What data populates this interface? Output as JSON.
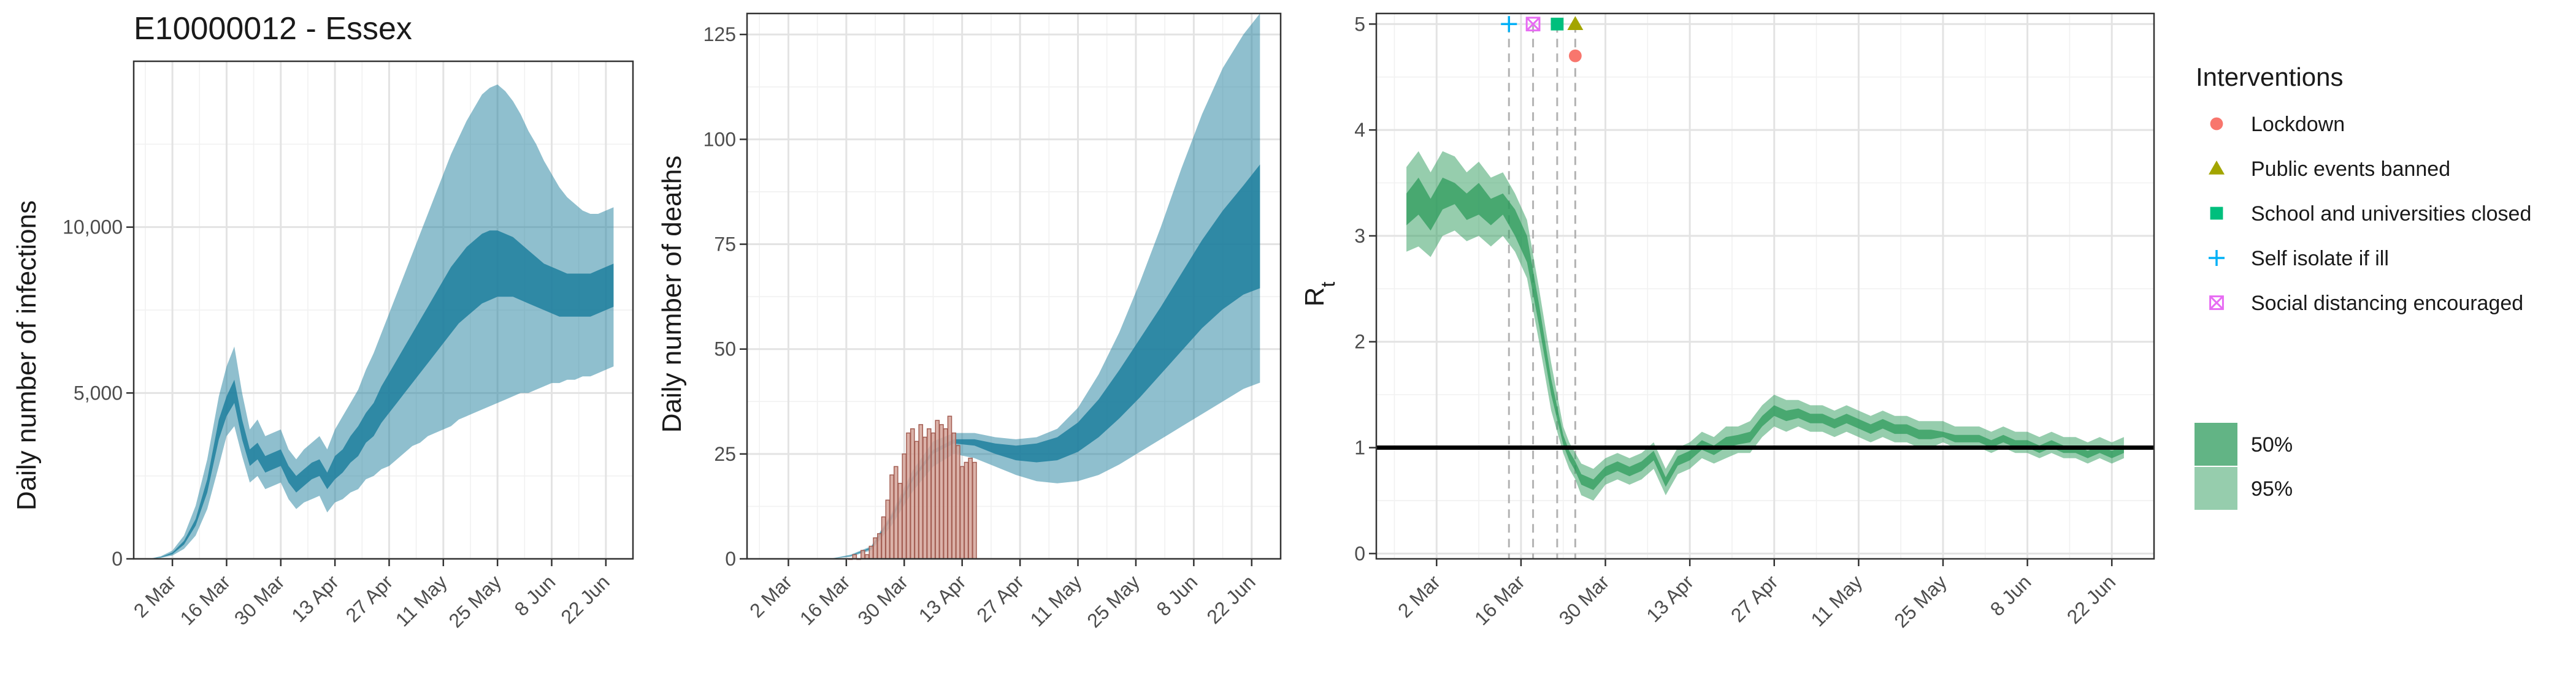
{
  "colors": {
    "infection_band": "#1f7f9d",
    "rt_band": "#2e9b5c",
    "deaths_bar_fill": "#d5a59a",
    "deaths_bar_stroke": "#a35d52",
    "lockdown": "#f8766d",
    "public_events": "#a3a500",
    "schools": "#00bf7d",
    "self_isolate": "#00b0f6",
    "social_distancing": "#e76bf3"
  },
  "chart_data": [
    {
      "type": "area",
      "title": "E10000012 - Essex",
      "xlabel": "",
      "ylabel": "Daily number of infections",
      "x_ticks": [
        "2 Mar",
        "16 Mar",
        "30 Mar",
        "13 Apr",
        "27 Apr",
        "11 May",
        "25 May",
        "8 Jun",
        "22 Jun"
      ],
      "y_ticks": [
        "0",
        "5,000",
        "10,000"
      ],
      "x_range_days": [
        -10,
        119
      ],
      "ylim": [
        0,
        15000
      ],
      "x": [
        -6,
        -3,
        0,
        3,
        6,
        9,
        12,
        14,
        16,
        18,
        20,
        22,
        24,
        26,
        28,
        30,
        32,
        34,
        36,
        38,
        40,
        42,
        44,
        46,
        48,
        50,
        52,
        54,
        56,
        58,
        60,
        62,
        64,
        66,
        68,
        70,
        72,
        74,
        76,
        78,
        80,
        82,
        84,
        86,
        88,
        90,
        92,
        94,
        96,
        98,
        100,
        102,
        104,
        106,
        108,
        110,
        112,
        114
      ],
      "series": [
        {
          "band": "95%",
          "lower": [
            0,
            30,
            100,
            300,
            700,
            1500,
            2800,
            3700,
            4000,
            3100,
            2300,
            2500,
            2100,
            2200,
            2300,
            1800,
            1500,
            1700,
            1800,
            1900,
            1400,
            1700,
            1800,
            2000,
            2100,
            2400,
            2500,
            2700,
            2800,
            3000,
            3200,
            3400,
            3500,
            3700,
            3800,
            3900,
            4000,
            4200,
            4300,
            4400,
            4500,
            4600,
            4700,
            4800,
            4900,
            5000,
            5000,
            5100,
            5200,
            5300,
            5300,
            5400,
            5400,
            5500,
            5500,
            5600,
            5700,
            5800
          ],
          "upper": [
            0,
            80,
            250,
            700,
            1600,
            3000,
            4900,
            5800,
            6400,
            5000,
            3900,
            4200,
            3700,
            3800,
            3900,
            3300,
            3000,
            3300,
            3500,
            3700,
            3300,
            3900,
            4300,
            4700,
            5100,
            5700,
            6200,
            6800,
            7400,
            8000,
            8600,
            9200,
            9800,
            10400,
            11000,
            11600,
            12200,
            12700,
            13200,
            13600,
            14000,
            14200,
            14300,
            14100,
            13800,
            13400,
            12900,
            12500,
            12000,
            11600,
            11200,
            10900,
            10700,
            10500,
            10400,
            10400,
            10500,
            10600
          ]
        },
        {
          "band": "50%",
          "lower": [
            0,
            40,
            140,
            430,
            1000,
            2000,
            3600,
            4300,
            4700,
            3600,
            2800,
            3000,
            2600,
            2700,
            2800,
            2300,
            2000,
            2200,
            2400,
            2500,
            2100,
            2400,
            2600,
            2900,
            3100,
            3500,
            3700,
            4100,
            4400,
            4700,
            5000,
            5300,
            5600,
            5900,
            6200,
            6500,
            6800,
            7100,
            7300,
            7500,
            7700,
            7800,
            7900,
            7900,
            7900,
            7800,
            7700,
            7600,
            7500,
            7400,
            7300,
            7300,
            7300,
            7300,
            7300,
            7400,
            7500,
            7600
          ],
          "upper": [
            0,
            55,
            190,
            540,
            1200,
            2400,
            4200,
            4900,
            5400,
            4200,
            3300,
            3500,
            3100,
            3200,
            3300,
            2800,
            2500,
            2700,
            2900,
            3000,
            2600,
            3100,
            3300,
            3700,
            4000,
            4400,
            4700,
            5200,
            5600,
            6000,
            6400,
            6800,
            7200,
            7600,
            8000,
            8400,
            8800,
            9100,
            9400,
            9600,
            9800,
            9900,
            9900,
            9800,
            9700,
            9500,
            9300,
            9100,
            8900,
            8800,
            8700,
            8600,
            8600,
            8600,
            8600,
            8700,
            8800,
            8900
          ]
        }
      ]
    },
    {
      "type": "bar",
      "title": "",
      "xlabel": "",
      "ylabel": "Daily number of deaths",
      "x_ticks": [
        "2 Mar",
        "16 Mar",
        "30 Mar",
        "13 Apr",
        "27 Apr",
        "11 May",
        "25 May",
        "8 Jun",
        "22 Jun"
      ],
      "y_ticks": [
        "0",
        "25",
        "50",
        "75",
        "100",
        "125"
      ],
      "x_range_days": [
        -10,
        119
      ],
      "ylim": [
        0,
        130
      ],
      "bars": {
        "start_day": 15,
        "values": [
          0,
          1,
          0,
          2,
          1,
          3,
          5,
          6,
          10,
          14,
          20,
          22,
          18,
          25,
          30,
          31,
          28,
          32,
          29,
          31,
          30,
          33,
          32,
          31,
          34,
          30,
          27,
          22,
          23,
          24,
          23
        ]
      },
      "bands_x": [
        10,
        15,
        20,
        25,
        30,
        35,
        40,
        45,
        50,
        55,
        60,
        65,
        70,
        75,
        80,
        85,
        90,
        95,
        100,
        105,
        110,
        114
      ],
      "series": [
        {
          "band": "95%",
          "lower": [
            0,
            0.5,
            2,
            8,
            16,
            22,
            25,
            24,
            22,
            20,
            18.5,
            18,
            18.5,
            20,
            22.5,
            25.5,
            28.5,
            31.5,
            34.5,
            37.5,
            40.5,
            42
          ],
          "upper": [
            0,
            1,
            3,
            11,
            21,
            28,
            30,
            30,
            29,
            28.5,
            29,
            31,
            36,
            44,
            54,
            66,
            79,
            93,
            106,
            117,
            125,
            130
          ]
        },
        {
          "band": "50%",
          "lower": [
            0,
            0.7,
            2.4,
            9.5,
            18.5,
            25,
            27.5,
            27,
            25,
            23.5,
            23,
            23.5,
            25.5,
            29,
            33.5,
            38.5,
            44,
            49.5,
            55,
            59.5,
            63,
            64.5
          ],
          "upper": [
            0,
            0.8,
            2.7,
            10.5,
            19.5,
            26,
            28.5,
            28.5,
            27.5,
            27,
            27.5,
            29,
            32.5,
            38,
            45,
            52.5,
            60,
            68,
            76,
            83,
            89,
            94
          ]
        }
      ]
    },
    {
      "type": "line",
      "title": "",
      "xlabel": "",
      "ylabel": "Rt",
      "x_ticks": [
        "2 Mar",
        "16 Mar",
        "30 Mar",
        "13 Apr",
        "27 Apr",
        "11 May",
        "25 May",
        "8 Jun",
        "22 Jun"
      ],
      "y_ticks": [
        "0",
        "1",
        "2",
        "3",
        "4",
        "5"
      ],
      "x_range_days": [
        -10,
        119
      ],
      "ylim": [
        -0.05,
        5.1
      ],
      "reference_line": 1,
      "x": [
        -5,
        -3,
        -1,
        1,
        3,
        5,
        7,
        9,
        11,
        13,
        15,
        17,
        19,
        21,
        22,
        23,
        24,
        26,
        28,
        30,
        32,
        34,
        36,
        38,
        40,
        42,
        44,
        46,
        48,
        50,
        52,
        54,
        56,
        58,
        60,
        62,
        64,
        66,
        68,
        70,
        72,
        74,
        76,
        78,
        80,
        82,
        84,
        86,
        88,
        90,
        92,
        94,
        96,
        98,
        100,
        102,
        104,
        106,
        108,
        110,
        112,
        114
      ],
      "series": [
        {
          "band": "95%",
          "lower": [
            2.85,
            2.9,
            2.8,
            3.0,
            3.05,
            2.95,
            3.0,
            2.9,
            3.0,
            2.85,
            2.6,
            2.0,
            1.35,
            0.95,
            0.8,
            0.7,
            0.55,
            0.5,
            0.65,
            0.7,
            0.65,
            0.7,
            0.8,
            0.55,
            0.75,
            0.8,
            0.9,
            0.85,
            0.9,
            0.95,
            0.95,
            1.1,
            1.2,
            1.15,
            1.2,
            1.15,
            1.15,
            1.1,
            1.15,
            1.1,
            1.05,
            1.1,
            1.05,
            1.05,
            1.0,
            1.0,
            1.05,
            1.0,
            1.0,
            1.0,
            0.95,
            1.0,
            0.95,
            0.95,
            0.9,
            0.95,
            0.9,
            0.9,
            0.85,
            0.9,
            0.85,
            0.9
          ],
          "upper": [
            3.65,
            3.8,
            3.6,
            3.8,
            3.75,
            3.6,
            3.7,
            3.55,
            3.6,
            3.4,
            3.15,
            2.5,
            1.8,
            1.2,
            1.05,
            0.95,
            0.85,
            0.8,
            0.9,
            0.95,
            0.9,
            0.95,
            1.05,
            0.8,
            1.0,
            1.05,
            1.15,
            1.1,
            1.2,
            1.2,
            1.25,
            1.4,
            1.5,
            1.45,
            1.45,
            1.4,
            1.4,
            1.35,
            1.4,
            1.35,
            1.3,
            1.35,
            1.3,
            1.3,
            1.25,
            1.25,
            1.25,
            1.2,
            1.2,
            1.2,
            1.15,
            1.2,
            1.15,
            1.15,
            1.1,
            1.15,
            1.1,
            1.1,
            1.05,
            1.1,
            1.05,
            1.1
          ]
        },
        {
          "band": "50%",
          "lower": [
            3.1,
            3.2,
            3.05,
            3.25,
            3.3,
            3.15,
            3.2,
            3.1,
            3.2,
            3.0,
            2.75,
            2.15,
            1.5,
            1.03,
            0.88,
            0.78,
            0.65,
            0.6,
            0.73,
            0.78,
            0.73,
            0.78,
            0.88,
            0.63,
            0.83,
            0.88,
            0.98,
            0.93,
            1.0,
            1.03,
            1.05,
            1.2,
            1.3,
            1.25,
            1.28,
            1.23,
            1.23,
            1.18,
            1.23,
            1.18,
            1.13,
            1.18,
            1.13,
            1.13,
            1.08,
            1.08,
            1.1,
            1.05,
            1.05,
            1.05,
            1.0,
            1.05,
            1.0,
            1.0,
            0.95,
            1.0,
            0.95,
            0.95,
            0.9,
            0.95,
            0.9,
            0.95
          ],
          "upper": [
            3.4,
            3.55,
            3.35,
            3.55,
            3.5,
            3.4,
            3.5,
            3.35,
            3.4,
            3.25,
            3.0,
            2.35,
            1.65,
            1.12,
            0.97,
            0.87,
            0.75,
            0.7,
            0.82,
            0.87,
            0.82,
            0.87,
            0.97,
            0.72,
            0.92,
            0.97,
            1.07,
            1.02,
            1.1,
            1.12,
            1.15,
            1.3,
            1.4,
            1.35,
            1.37,
            1.32,
            1.32,
            1.27,
            1.32,
            1.27,
            1.22,
            1.27,
            1.22,
            1.22,
            1.17,
            1.17,
            1.15,
            1.12,
            1.12,
            1.12,
            1.07,
            1.12,
            1.07,
            1.07,
            1.02,
            1.07,
            1.02,
            1.02,
            0.97,
            1.02,
            0.97,
            1.02
          ]
        }
      ],
      "interventions": [
        {
          "name": "Lockdown",
          "day": 23,
          "y": 4.7,
          "shape": "circle"
        },
        {
          "name": "Public events banned",
          "day": 23,
          "y": 5.0,
          "shape": "triangle"
        },
        {
          "name": "School and universities closed",
          "day": 20,
          "y": 5.0,
          "shape": "square"
        },
        {
          "name": "Self isolate if ill",
          "day": 12,
          "y": 5.0,
          "shape": "plus"
        },
        {
          "name": "Social distancing encouraged",
          "day": 16,
          "y": 5.0,
          "shape": "boxx"
        }
      ]
    }
  ],
  "legend": {
    "title": "Interventions",
    "items": [
      {
        "label": "Lockdown",
        "shape": "circle"
      },
      {
        "label": "Public events banned",
        "shape": "triangle"
      },
      {
        "label": "School and universities closed",
        "shape": "square"
      },
      {
        "label": "Self isolate if ill",
        "shape": "plus"
      },
      {
        "label": "Social distancing encouraged",
        "shape": "boxx"
      }
    ],
    "bands": [
      {
        "label": "50%"
      },
      {
        "label": "95%"
      }
    ]
  }
}
